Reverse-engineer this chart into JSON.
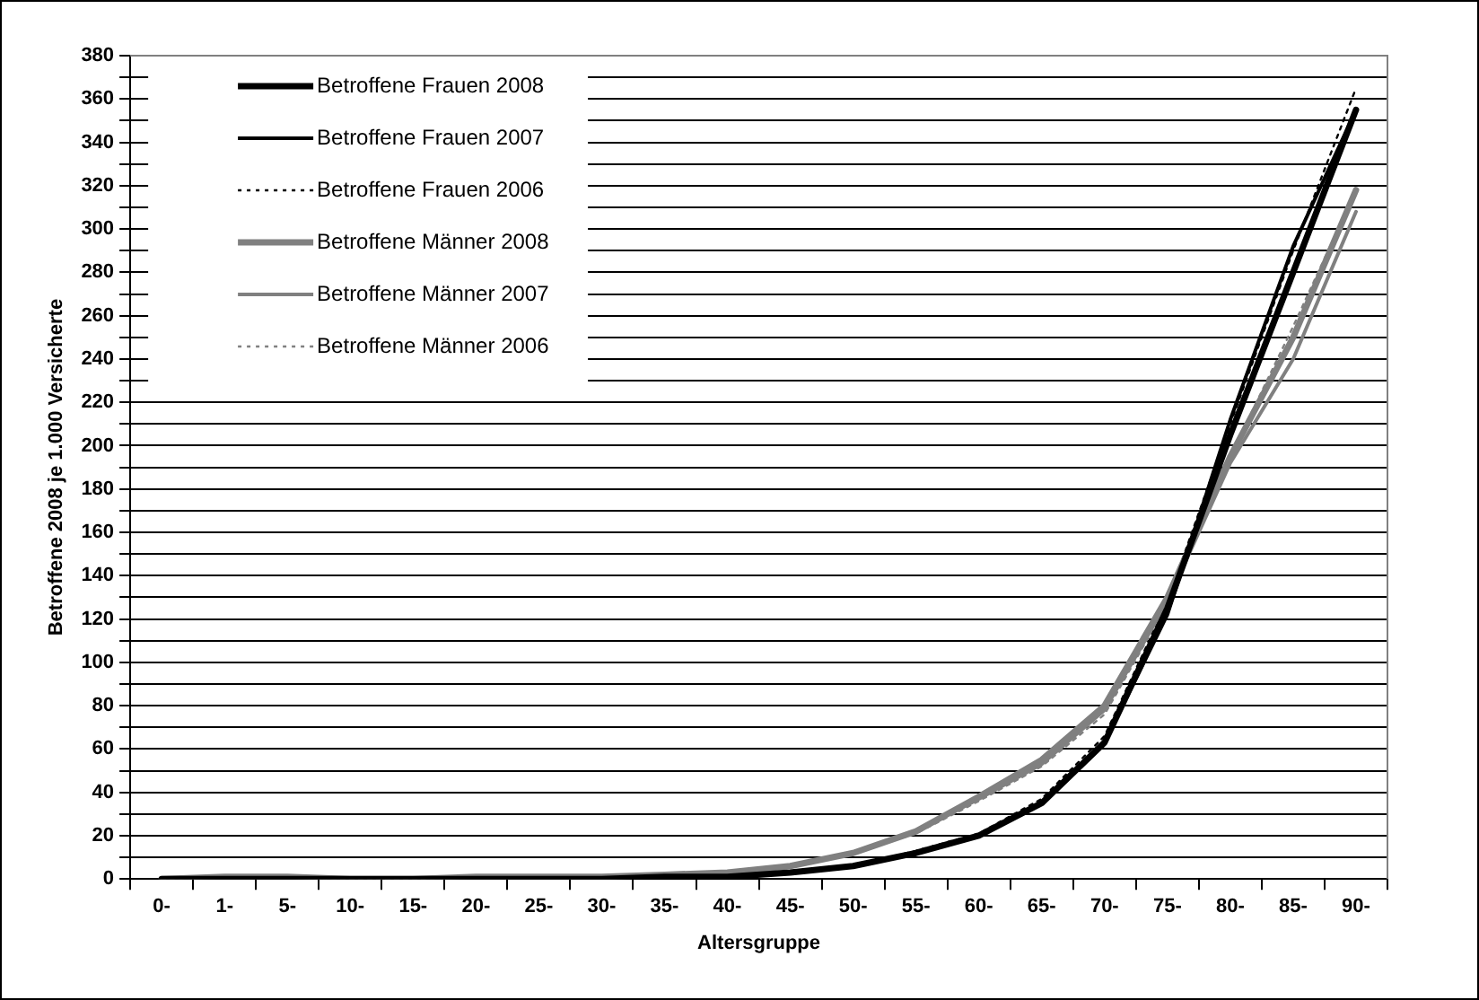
{
  "chart_data": {
    "type": "line",
    "xlabel": "Altersgruppe",
    "ylabel": "Betroffene 2008 je 1.000 Versicherte",
    "categories": [
      "0-",
      "1-",
      "5-",
      "10-",
      "15-",
      "20-",
      "25-",
      "30-",
      "35-",
      "40-",
      "45-",
      "50-",
      "55-",
      "60-",
      "65-",
      "70-",
      "75-",
      "80-",
      "85-",
      "90-"
    ],
    "series": [
      {
        "name": "Betroffene Frauen 2008",
        "color": "#000000",
        "line_style": "solid",
        "values": [
          0,
          0,
          0,
          0,
          0,
          0,
          0,
          0,
          1,
          1,
          3,
          6,
          12,
          20,
          35,
          63,
          125,
          205,
          280,
          355
        ]
      },
      {
        "name": "Betroffene Frauen 2007",
        "color": "#000000",
        "line_style": "solid",
        "values": [
          0,
          0,
          0,
          0,
          0,
          0,
          0,
          0,
          1,
          1,
          3,
          6,
          12,
          20,
          35,
          63,
          122,
          212,
          292,
          355
        ]
      },
      {
        "name": "Betroffene Frauen 2006",
        "color": "#000000",
        "line_style": "dotted",
        "values": [
          0,
          0,
          0,
          0,
          0,
          0,
          0,
          0,
          1,
          1,
          3,
          6,
          13,
          21,
          37,
          66,
          128,
          210,
          290,
          365
        ]
      },
      {
        "name": "Betroffene Männer 2008",
        "color": "#808080",
        "line_style": "solid",
        "values": [
          0,
          1,
          1,
          0,
          0,
          1,
          1,
          1,
          2,
          3,
          6,
          12,
          22,
          38,
          55,
          80,
          130,
          195,
          250,
          318
        ]
      },
      {
        "name": "Betroffene Männer 2007",
        "color": "#808080",
        "line_style": "solid",
        "values": [
          0,
          1,
          1,
          0,
          0,
          1,
          1,
          1,
          2,
          3,
          6,
          12,
          22,
          37,
          53,
          78,
          128,
          192,
          240,
          308
        ]
      },
      {
        "name": "Betroffene Männer 2006",
        "color": "#808080",
        "line_style": "dotted",
        "values": [
          0,
          1,
          1,
          0,
          0,
          1,
          1,
          1,
          2,
          3,
          6,
          12,
          21,
          36,
          52,
          76,
          127,
          195,
          255,
          318
        ]
      }
    ],
    "ylim": [
      0,
      380
    ],
    "yticks": [
      0,
      {
        "value": 10,
        "label": null
      },
      20,
      {
        "value": 30,
        "label": null
      },
      40,
      {
        "value": 50,
        "label": null
      },
      60,
      {
        "value": 70,
        "label": null
      },
      80,
      {
        "value": 90,
        "label": null
      },
      100,
      {
        "value": 110,
        "label": null
      },
      120,
      {
        "value": 130,
        "label": null
      },
      140,
      {
        "value": 150,
        "label": null
      },
      160,
      {
        "value": 170,
        "label": null
      },
      180,
      {
        "value": 190,
        "label": null
      },
      200,
      {
        "value": 210,
        "label": null
      },
      220,
      {
        "value": 230,
        "label": null
      },
      240,
      {
        "value": 250,
        "label": null
      },
      260,
      {
        "value": 270,
        "label": null
      },
      280,
      {
        "value": 290,
        "label": null
      },
      300,
      {
        "value": 310,
        "label": null
      },
      320,
      {
        "value": 330,
        "label": null
      },
      340,
      {
        "value": 350,
        "label": null
      },
      360,
      {
        "value": 370,
        "label": null
      },
      380
    ],
    "grid": "y",
    "legend": "top left",
    "marker": "none"
  }
}
